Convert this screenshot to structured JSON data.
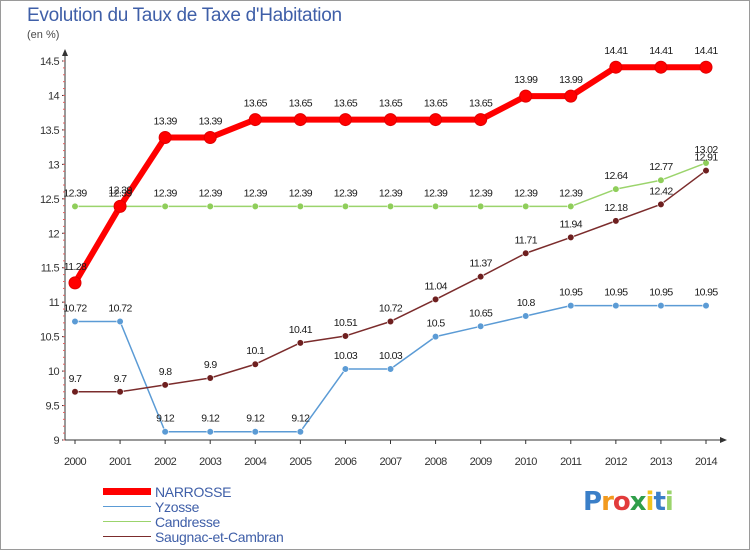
{
  "title": "Evolution du Taux de Taxe d'Habitation",
  "unit": "(en %)",
  "logo_text": "Proxiti",
  "chart_data": {
    "type": "line",
    "title": "Evolution du Taux de Taxe d'Habitation",
    "ylabel": "(en %)",
    "xlabel": "",
    "x": [
      2000,
      2001,
      2002,
      2003,
      2004,
      2005,
      2006,
      2007,
      2008,
      2009,
      2010,
      2011,
      2012,
      2013,
      2014
    ],
    "ylim": [
      9,
      14.5
    ],
    "yticks": [
      9,
      9.5,
      10,
      10.5,
      11,
      11.5,
      12,
      12.5,
      13,
      13.5,
      14,
      14.5
    ],
    "grid": false,
    "legend_position": "bottom-left",
    "series": [
      {
        "name": "NARROSSE",
        "color": "#ff0000",
        "values": [
          11.28,
          12.39,
          13.39,
          13.39,
          13.65,
          13.65,
          13.65,
          13.65,
          13.65,
          13.65,
          13.99,
          13.99,
          14.41,
          14.41,
          14.41
        ]
      },
      {
        "name": "Yzosse",
        "color": "#5b9bd5",
        "values": [
          10.72,
          10.72,
          9.12,
          9.12,
          9.12,
          9.12,
          10.03,
          10.03,
          10.5,
          10.65,
          10.8,
          10.95,
          10.95,
          10.95,
          10.95
        ]
      },
      {
        "name": "Candresse",
        "color": "#9bd46c",
        "values": [
          12.39,
          12.39,
          12.39,
          12.39,
          12.39,
          12.39,
          12.39,
          12.39,
          12.39,
          12.39,
          12.39,
          12.39,
          12.64,
          12.77,
          13.02
        ]
      },
      {
        "name": "Saugnac-et-Cambran",
        "color": "#7b2c2c",
        "values": [
          9.7,
          9.7,
          9.8,
          9.9,
          10.1,
          10.41,
          10.51,
          10.72,
          11.04,
          11.37,
          11.71,
          11.94,
          12.18,
          12.42,
          12.91
        ]
      }
    ]
  }
}
